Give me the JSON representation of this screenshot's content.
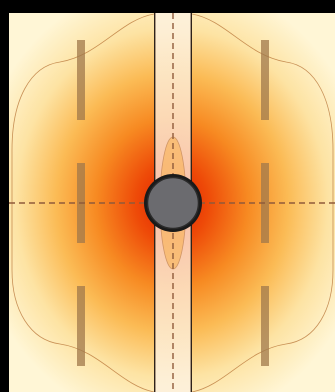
{
  "diagram": {
    "type": "thermal-field-map",
    "colors": {
      "background": "#000000",
      "field_cold": "#fff5d2",
      "field_warm": "#fbbf57",
      "field_hot": "#e02000",
      "contour_line": "#b06a2c",
      "center_axis": "#8f5a3a",
      "channel_fill": "#fdf3e6",
      "channel_outline": "#5c4534",
      "rib_fill": "#a0784b",
      "disc_fill": "#6b6b6f",
      "disc_outline": "#1a1a1a"
    }
  }
}
